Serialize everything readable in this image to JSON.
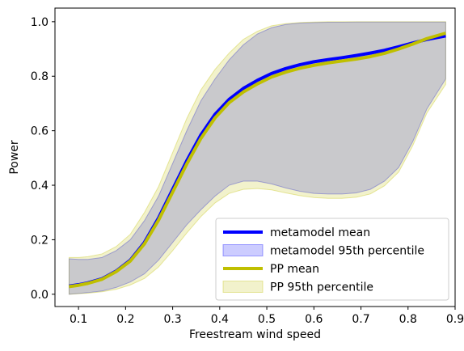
{
  "chart_data": {
    "type": "line",
    "title": "",
    "xlabel": "Freestream wind speed",
    "ylabel": "Power",
    "xlim": [
      0.05,
      0.9
    ],
    "ylim": [
      -0.045,
      1.05
    ],
    "xticks": [
      0.1,
      0.2,
      0.3,
      0.4,
      0.5,
      0.6,
      0.7,
      0.8,
      0.9
    ],
    "xtick_labels": [
      "0.1",
      "0.2",
      "0.3",
      "0.4",
      "0.5",
      "0.6",
      "0.7",
      "0.8",
      "0.9"
    ],
    "yticks": [
      0.0,
      0.2,
      0.4,
      0.6,
      0.8,
      1.0
    ],
    "ytick_labels": [
      "0.0",
      "0.2",
      "0.4",
      "0.6",
      "0.8",
      "1.0"
    ],
    "grid": false,
    "legend_position": "bottom-right",
    "x": [
      0.08,
      0.1,
      0.12,
      0.15,
      0.18,
      0.21,
      0.24,
      0.27,
      0.3,
      0.33,
      0.36,
      0.39,
      0.42,
      0.45,
      0.48,
      0.51,
      0.54,
      0.57,
      0.6,
      0.63,
      0.66,
      0.69,
      0.72,
      0.75,
      0.78,
      0.81,
      0.84,
      0.88
    ],
    "series": [
      {
        "name": "metamodel mean",
        "kind": "line",
        "color": "#0000ff",
        "values": [
          0.03,
          0.035,
          0.042,
          0.057,
          0.085,
          0.125,
          0.19,
          0.28,
          0.385,
          0.49,
          0.585,
          0.66,
          0.715,
          0.755,
          0.785,
          0.81,
          0.828,
          0.842,
          0.853,
          0.861,
          0.868,
          0.876,
          0.885,
          0.895,
          0.908,
          0.922,
          0.935,
          0.948
        ]
      },
      {
        "name": "metamodel 95th percentile",
        "kind": "band",
        "color": "#0000ff",
        "lower": [
          0.0,
          0.003,
          0.006,
          0.012,
          0.025,
          0.045,
          0.075,
          0.125,
          0.19,
          0.255,
          0.31,
          0.36,
          0.4,
          0.415,
          0.415,
          0.405,
          0.39,
          0.378,
          0.37,
          0.368,
          0.368,
          0.372,
          0.385,
          0.415,
          0.465,
          0.56,
          0.68,
          0.79
        ],
        "upper": [
          0.13,
          0.128,
          0.128,
          0.135,
          0.16,
          0.2,
          0.27,
          0.36,
          0.48,
          0.6,
          0.71,
          0.79,
          0.86,
          0.915,
          0.955,
          0.978,
          0.99,
          0.995,
          0.997,
          0.998,
          0.998,
          0.999,
          0.999,
          0.999,
          0.999,
          0.999,
          0.999,
          0.999
        ]
      },
      {
        "name": "PP mean",
        "kind": "line",
        "color": "#bfbf00",
        "values": [
          0.028,
          0.033,
          0.04,
          0.055,
          0.083,
          0.122,
          0.185,
          0.272,
          0.375,
          0.478,
          0.572,
          0.647,
          0.703,
          0.742,
          0.772,
          0.797,
          0.815,
          0.829,
          0.84,
          0.849,
          0.856,
          0.863,
          0.872,
          0.884,
          0.9,
          0.918,
          0.938,
          0.958
        ]
      },
      {
        "name": "PP 95th percentile",
        "kind": "band",
        "color": "#bfbf00",
        "lower": [
          0.0,
          0.002,
          0.004,
          0.009,
          0.018,
          0.034,
          0.058,
          0.1,
          0.16,
          0.225,
          0.285,
          0.335,
          0.37,
          0.385,
          0.388,
          0.383,
          0.372,
          0.362,
          0.355,
          0.352,
          0.352,
          0.356,
          0.368,
          0.398,
          0.448,
          0.545,
          0.665,
          0.77
        ],
        "upper": [
          0.135,
          0.135,
          0.138,
          0.148,
          0.175,
          0.22,
          0.3,
          0.395,
          0.52,
          0.645,
          0.75,
          0.825,
          0.885,
          0.935,
          0.965,
          0.985,
          0.993,
          0.997,
          0.999,
          1.0,
          1.0,
          1.0,
          1.0,
          1.0,
          1.0,
          1.0,
          1.0,
          1.0
        ]
      }
    ]
  }
}
